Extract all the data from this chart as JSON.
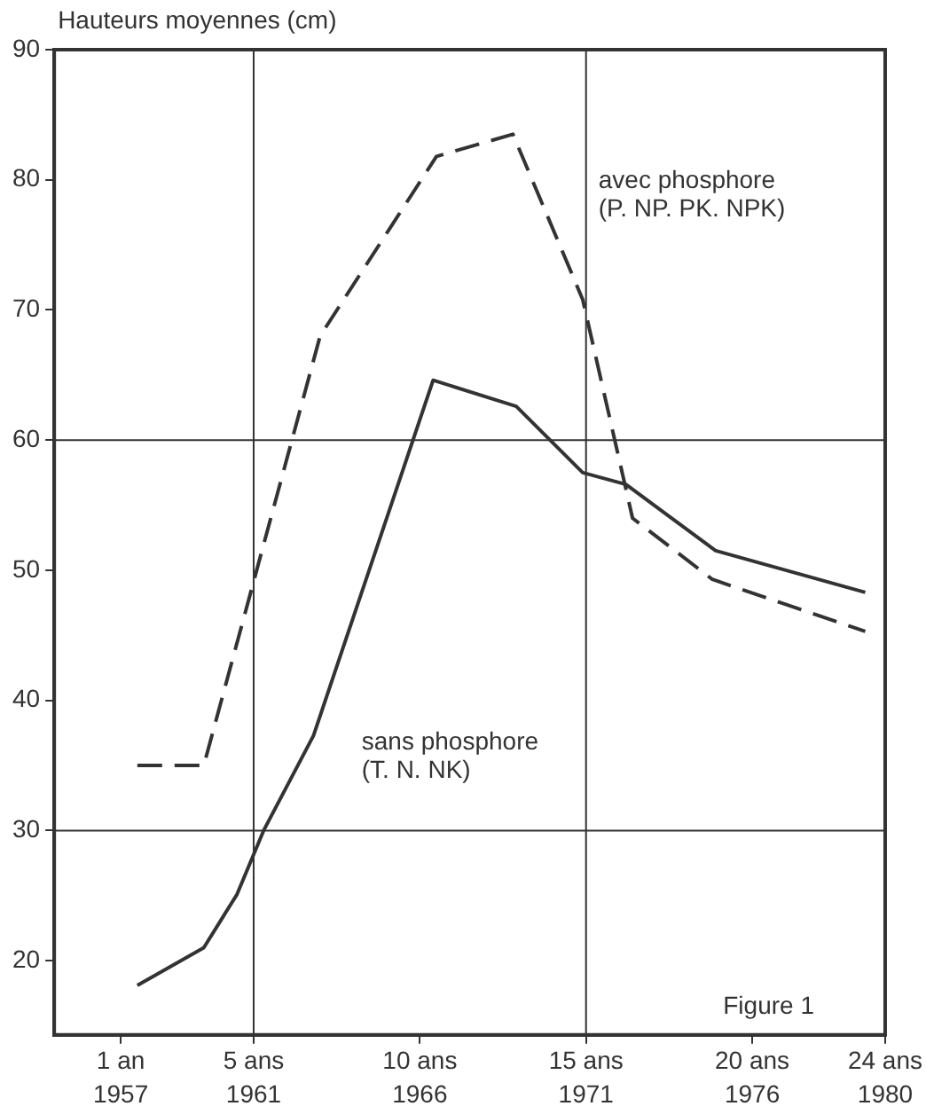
{
  "chart_data": {
    "type": "line",
    "ylabel": "Hauteurs moyennes (cm)",
    "xlim": [
      1955,
      1980
    ],
    "xticks": [
      1957,
      1961,
      1966,
      1971,
      1976,
      1980
    ],
    "x2lim": [
      -1,
      24
    ],
    "x2ticks": [
      {
        "value": 1,
        "label": "1 an"
      },
      {
        "value": 5,
        "label": "5 ans"
      },
      {
        "value": 10,
        "label": "10 ans"
      },
      {
        "value": 15,
        "label": "15 ans"
      },
      {
        "value": 20,
        "label": "20 ans"
      },
      {
        "value": 24,
        "label": "24 ans"
      }
    ],
    "ylim": [
      14.3,
      90
    ],
    "yticks": [
      20,
      30,
      40,
      50,
      60,
      70,
      80,
      90
    ],
    "series": [
      {
        "name": "avec phosphore\n(P. NP. PK. NPK)",
        "color": "#333333",
        "line_style": "dashed",
        "x": [
          1957.5,
          1959.5,
          1963.0,
          1966.5,
          1968.8,
          1970.9,
          1972.4,
          1974.8,
          1979.4
        ],
        "values": [
          35.0,
          35.0,
          68.0,
          81.8,
          83.5,
          70.8,
          54.0,
          49.3,
          45.3
        ]
      },
      {
        "name": "sans phosphore\n(T. N. NK)",
        "color": "#333333",
        "line_style": "solid",
        "x": [
          1957.5,
          1959.5,
          1960.5,
          1961.3,
          1962.8,
          1966.4,
          1968.9,
          1970.9,
          1972.2,
          1974.9,
          1979.4
        ],
        "values": [
          18.1,
          21.0,
          25.1,
          30.0,
          37.3,
          64.6,
          62.6,
          57.5,
          56.6,
          51.5,
          48.3
        ]
      }
    ],
    "ref_lines": [
      {
        "axis": "x",
        "value": 1961,
        "color": "#333333"
      },
      {
        "axis": "x",
        "value": 1971,
        "color": "#333333"
      },
      {
        "axis": "y",
        "value": 60,
        "color": "#333333"
      },
      {
        "axis": "y",
        "value": 30,
        "color": "#333333"
      }
    ],
    "annotations": [
      "Figure 1"
    ],
    "marker": "none",
    "legend": false
  }
}
